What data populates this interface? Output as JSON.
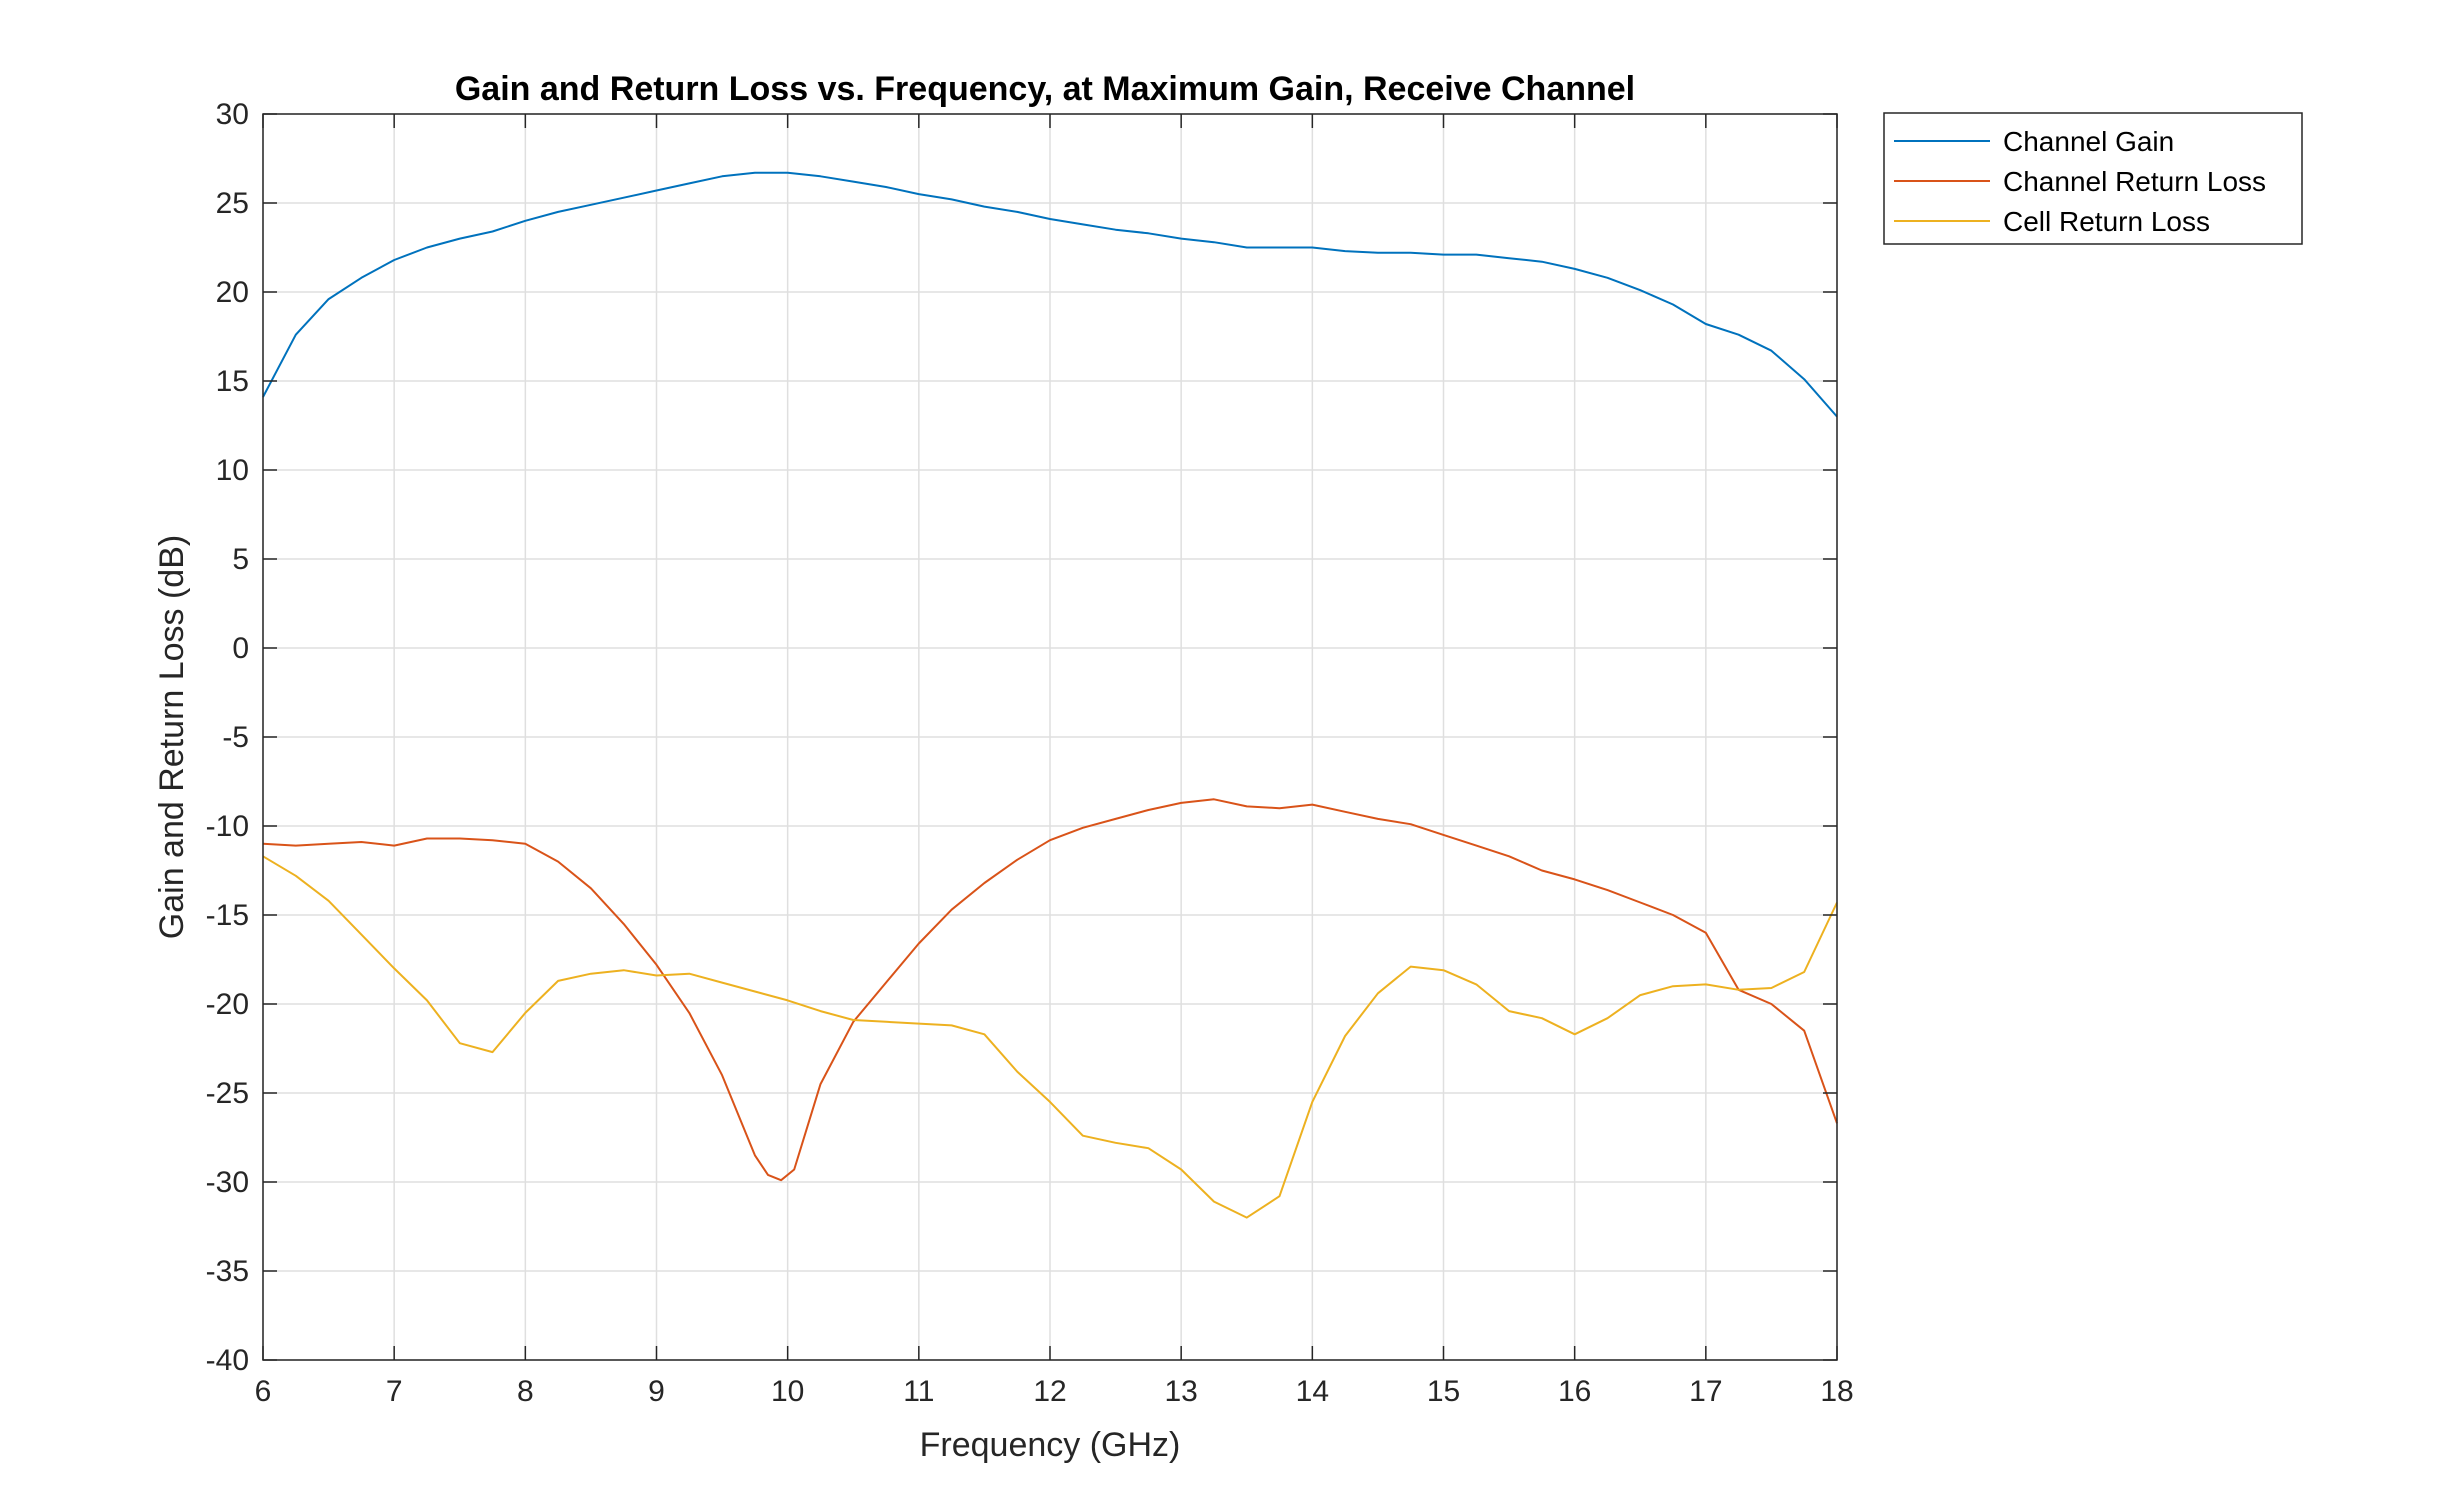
{
  "chart_data": {
    "type": "line",
    "title": "Gain and Return Loss vs. Frequency, at Maximum Gain, Receive Channel",
    "xlabel": "Frequency (GHz)",
    "ylabel": "Gain and Return Loss (dB)",
    "xlim": [
      6,
      18
    ],
    "ylim": [
      -40,
      30
    ],
    "xticks": [
      6,
      7,
      8,
      9,
      10,
      11,
      12,
      13,
      14,
      15,
      16,
      17,
      18
    ],
    "yticks": [
      30,
      25,
      20,
      15,
      10,
      5,
      0,
      -5,
      -10,
      -15,
      -20,
      -25,
      -30,
      -35,
      -40
    ],
    "grid": true,
    "legend_position": "outside top-right",
    "series": [
      {
        "name": "Channel Gain",
        "color": "#0072BD",
        "x": [
          6,
          6.25,
          6.5,
          6.75,
          7,
          7.25,
          7.5,
          7.75,
          8,
          8.25,
          8.5,
          8.75,
          9,
          9.25,
          9.5,
          9.75,
          10,
          10.25,
          10.5,
          10.75,
          11,
          11.25,
          11.5,
          11.75,
          12,
          12.25,
          12.5,
          12.75,
          13,
          13.25,
          13.5,
          13.75,
          14,
          14.25,
          14.5,
          14.75,
          15,
          15.25,
          15.5,
          15.75,
          16,
          16.25,
          16.5,
          16.75,
          17,
          17.25,
          17.5,
          17.75,
          18
        ],
        "y": [
          14.1,
          17.6,
          19.6,
          20.8,
          21.8,
          22.5,
          23.0,
          23.4,
          24.0,
          24.5,
          24.9,
          25.3,
          25.7,
          26.1,
          26.5,
          26.7,
          26.7,
          26.5,
          26.2,
          25.9,
          25.5,
          25.2,
          24.8,
          24.5,
          24.1,
          23.8,
          23.5,
          23.3,
          23.0,
          22.8,
          22.5,
          22.5,
          22.5,
          22.3,
          22.2,
          22.2,
          22.1,
          22.1,
          21.9,
          21.7,
          21.3,
          20.8,
          20.1,
          19.3,
          18.2,
          17.6,
          16.7,
          15.1,
          13.0
        ]
      },
      {
        "name": "Channel Return Loss",
        "color": "#D95319",
        "x": [
          6,
          6.25,
          6.5,
          6.75,
          7,
          7.25,
          7.5,
          7.75,
          8,
          8.25,
          8.5,
          8.75,
          9,
          9.25,
          9.5,
          9.75,
          9.85,
          9.95,
          10.05,
          10.25,
          10.5,
          10.75,
          11,
          11.25,
          11.5,
          11.75,
          12,
          12.25,
          12.5,
          12.75,
          13,
          13.25,
          13.5,
          13.75,
          14,
          14.25,
          14.5,
          14.75,
          15,
          15.25,
          15.5,
          15.75,
          16,
          16.25,
          16.5,
          16.75,
          17,
          17.25,
          17.5,
          17.75,
          18
        ],
        "y": [
          -11.0,
          -11.1,
          -11.0,
          -10.9,
          -11.1,
          -10.7,
          -10.7,
          -10.8,
          -11.0,
          -12.0,
          -13.5,
          -15.5,
          -17.8,
          -20.5,
          -24.0,
          -28.5,
          -29.6,
          -29.9,
          -29.3,
          -24.5,
          -21.0,
          -18.8,
          -16.6,
          -14.7,
          -13.2,
          -11.9,
          -10.8,
          -10.1,
          -9.6,
          -9.1,
          -8.7,
          -8.5,
          -8.9,
          -9.0,
          -8.8,
          -9.2,
          -9.6,
          -9.9,
          -10.5,
          -11.1,
          -11.7,
          -12.5,
          -13.0,
          -13.6,
          -14.3,
          -15.0,
          -16.0,
          -19.2,
          -20.0,
          -21.5,
          -26.7
        ]
      },
      {
        "name": "Cell Return Loss",
        "color": "#EDB120",
        "x": [
          6,
          6.25,
          6.5,
          6.75,
          7,
          7.25,
          7.5,
          7.75,
          8,
          8.25,
          8.5,
          8.75,
          9,
          9.25,
          9.5,
          9.75,
          10,
          10.25,
          10.5,
          10.75,
          11,
          11.25,
          11.5,
          11.75,
          12,
          12.25,
          12.5,
          12.75,
          13,
          13.25,
          13.5,
          13.75,
          14,
          14.25,
          14.5,
          14.75,
          15,
          15.25,
          15.5,
          15.75,
          16,
          16.25,
          16.5,
          16.75,
          17,
          17.25,
          17.5,
          17.75,
          18
        ],
        "y": [
          -11.7,
          -12.8,
          -14.2,
          -16.1,
          -18.0,
          -19.8,
          -22.2,
          -22.7,
          -20.5,
          -18.7,
          -18.3,
          -18.1,
          -18.4,
          -18.3,
          -18.8,
          -19.3,
          -19.8,
          -20.4,
          -20.9,
          -21.0,
          -21.1,
          -21.2,
          -21.7,
          -23.8,
          -25.5,
          -27.4,
          -27.8,
          -28.1,
          -29.3,
          -31.1,
          -32.0,
          -30.8,
          -25.5,
          -21.8,
          -19.4,
          -17.9,
          -18.1,
          -18.9,
          -20.4,
          -20.8,
          -21.7,
          -20.8,
          -19.5,
          -19.0,
          -18.9,
          -19.2,
          -19.1,
          -18.2,
          -14.3
        ]
      }
    ]
  }
}
